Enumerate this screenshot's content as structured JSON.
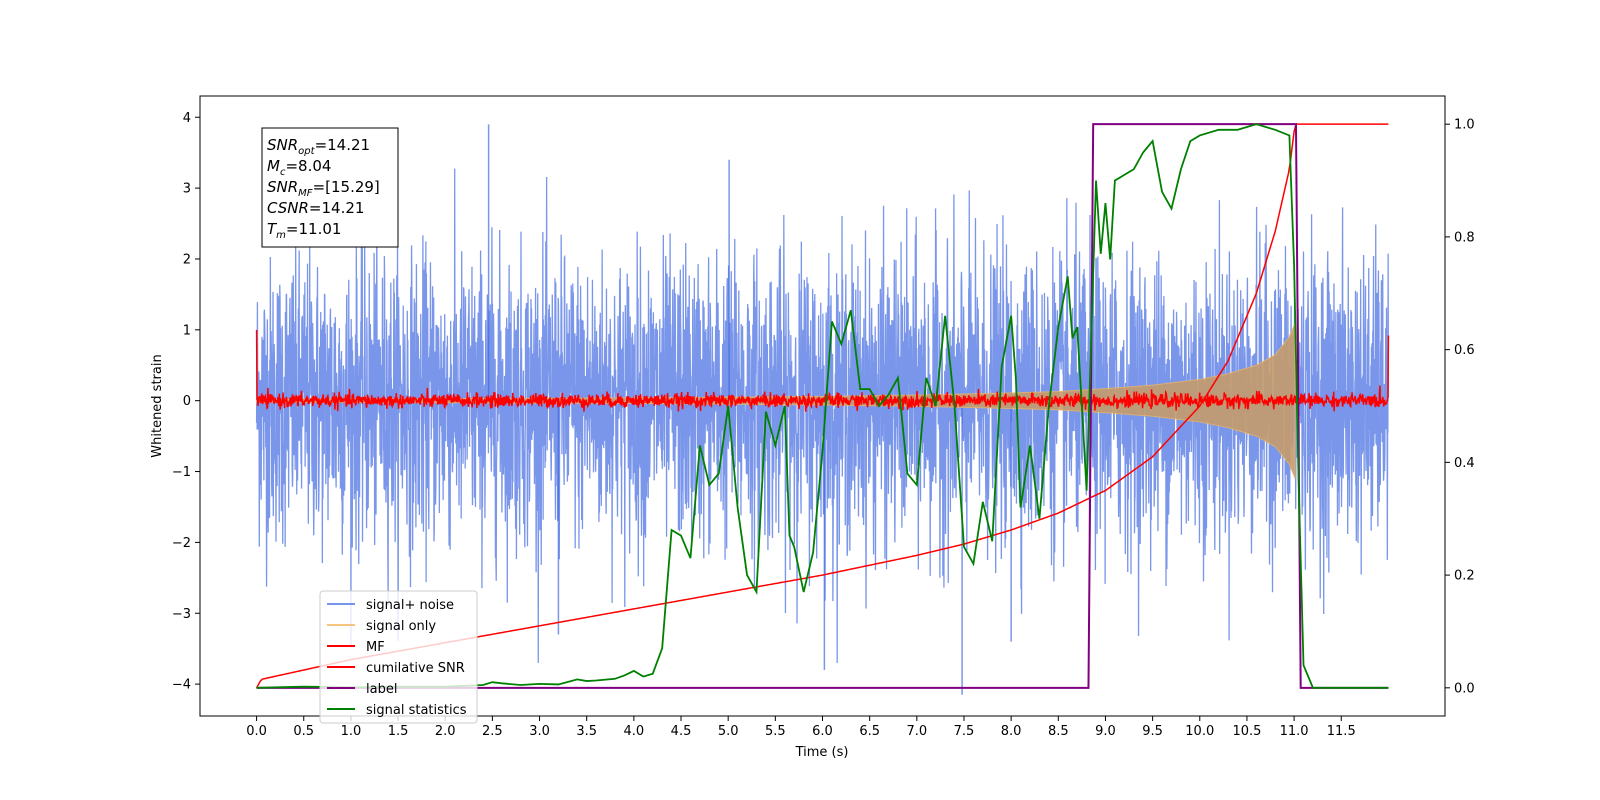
{
  "chart_data": {
    "type": "line",
    "title": "",
    "xlabel": "Time (s)",
    "ylabel": "Whitened strain",
    "ylabel_right": "",
    "xlim": [
      -0.6,
      12.6
    ],
    "ylim": [
      -4.45,
      4.3
    ],
    "ylim_right": [
      -0.05,
      1.05
    ],
    "xticks": [
      "0.0",
      "0.5",
      "1.0",
      "1.5",
      "2.0",
      "2.5",
      "3.0",
      "3.5",
      "4.0",
      "4.5",
      "5.0",
      "5.5",
      "6.0",
      "6.5",
      "7.0",
      "7.5",
      "8.0",
      "8.5",
      "9.0",
      "9.5",
      "10.0",
      "10.5",
      "11.0",
      "11.5"
    ],
    "yticks_left": [
      "−4",
      "−3",
      "−2",
      "−1",
      "0",
      "1",
      "2",
      "3",
      "4"
    ],
    "yticks_right": [
      "0.0",
      "0.2",
      "0.4",
      "0.6",
      "0.8",
      "1.0"
    ],
    "grid": false,
    "legend_position": "lower-left",
    "annotation_box": {
      "position": "top-left",
      "lines": [
        {
          "label": "SNR",
          "sub": "opt",
          "value": "=14.21"
        },
        {
          "label": "M",
          "sub": "c",
          "value": "=8.04"
        },
        {
          "label": "SNR",
          "sub": "MF",
          "value": "=[15.29]"
        },
        {
          "label": "CSNR",
          "sub": "",
          "value": "=14.21"
        },
        {
          "label": "T",
          "sub": "m",
          "value": "=11.01"
        }
      ]
    },
    "series": [
      {
        "name": "signal+ noise",
        "axis": "left",
        "color": "#4169e1",
        "rendering": "dense gaussian noise band",
        "x_range": [
          0.0,
          12.0
        ],
        "noise_std": 1.0,
        "spike_x": [
          2.46,
          3.2,
          5.01,
          6.02,
          7.48,
          8.0
        ],
        "spike_y": [
          3.9,
          -3.3,
          3.4,
          -3.8,
          -4.15,
          -3.4
        ]
      },
      {
        "name": "signal only",
        "axis": "left",
        "color": "#f4b860",
        "rendering": "chirp envelope",
        "x": [
          0.0,
          2.0,
          4.0,
          6.0,
          7.0,
          8.0,
          8.5,
          9.0,
          9.5,
          10.0,
          10.3,
          10.6,
          10.8,
          10.95,
          11.01
        ],
        "envelope": [
          0.02,
          0.03,
          0.04,
          0.06,
          0.08,
          0.11,
          0.13,
          0.17,
          0.22,
          0.3,
          0.38,
          0.5,
          0.65,
          0.9,
          1.1
        ]
      },
      {
        "name": "MF",
        "axis": "left",
        "color": "#ff0000",
        "rendering": "noisy line around zero",
        "x_range": [
          0.0,
          12.0
        ],
        "noise_std": 0.05,
        "edges": {
          "x": [
            0.0,
            12.0
          ],
          "y": [
            1.0,
            0.92
          ]
        }
      },
      {
        "name": "cumilative SNR",
        "axis": "right",
        "color": "#ff0000",
        "x": [
          0.0,
          0.05,
          1.0,
          2.0,
          3.0,
          4.0,
          5.0,
          6.0,
          7.0,
          7.5,
          8.0,
          8.5,
          9.0,
          9.5,
          10.0,
          10.3,
          10.6,
          10.8,
          10.95,
          11.01,
          11.02,
          12.0
        ],
        "y": [
          0.0,
          0.015,
          0.05,
          0.08,
          0.11,
          0.14,
          0.17,
          0.2,
          0.235,
          0.255,
          0.28,
          0.31,
          0.35,
          0.41,
          0.5,
          0.58,
          0.7,
          0.81,
          0.92,
          1.0,
          1.0,
          1.0
        ]
      },
      {
        "name": "label",
        "axis": "right",
        "color": "#800080",
        "x": [
          0.0,
          8.82,
          8.87,
          11.02,
          11.07,
          12.0
        ],
        "y": [
          0.0,
          0.0,
          1.0,
          1.0,
          0.0,
          0.0
        ]
      },
      {
        "name": "signal statistics",
        "axis": "right",
        "color": "#008000",
        "x": [
          0.0,
          0.5,
          1.0,
          1.5,
          2.0,
          2.4,
          2.5,
          2.6,
          2.8,
          3.0,
          3.2,
          3.4,
          3.5,
          3.6,
          3.8,
          3.9,
          4.0,
          4.1,
          4.2,
          4.3,
          4.4,
          4.5,
          4.6,
          4.7,
          4.8,
          4.9,
          5.0,
          5.1,
          5.2,
          5.3,
          5.4,
          5.5,
          5.6,
          5.65,
          5.7,
          5.8,
          5.9,
          6.0,
          6.1,
          6.2,
          6.3,
          6.4,
          6.5,
          6.6,
          6.7,
          6.8,
          6.9,
          7.0,
          7.1,
          7.2,
          7.3,
          7.4,
          7.5,
          7.6,
          7.7,
          7.8,
          7.9,
          8.0,
          8.05,
          8.1,
          8.2,
          8.3,
          8.4,
          8.5,
          8.6,
          8.65,
          8.7,
          8.75,
          8.8,
          8.9,
          8.95,
          9.0,
          9.05,
          9.1,
          9.2,
          9.3,
          9.4,
          9.5,
          9.6,
          9.7,
          9.8,
          9.9,
          10.0,
          10.2,
          10.4,
          10.6,
          10.8,
          10.95,
          11.0,
          11.05,
          11.1,
          11.2,
          12.0
        ],
        "y": [
          0.0,
          0.002,
          0.001,
          0.002,
          0.002,
          0.005,
          0.01,
          0.008,
          0.005,
          0.007,
          0.006,
          0.015,
          0.012,
          0.013,
          0.016,
          0.022,
          0.03,
          0.02,
          0.025,
          0.07,
          0.28,
          0.27,
          0.23,
          0.43,
          0.36,
          0.38,
          0.5,
          0.32,
          0.2,
          0.17,
          0.49,
          0.43,
          0.5,
          0.27,
          0.25,
          0.17,
          0.24,
          0.42,
          0.65,
          0.61,
          0.67,
          0.53,
          0.53,
          0.5,
          0.52,
          0.55,
          0.38,
          0.36,
          0.55,
          0.5,
          0.66,
          0.5,
          0.25,
          0.22,
          0.33,
          0.26,
          0.57,
          0.66,
          0.55,
          0.32,
          0.43,
          0.3,
          0.5,
          0.64,
          0.73,
          0.62,
          0.64,
          0.5,
          0.35,
          0.9,
          0.77,
          0.86,
          0.76,
          0.9,
          0.91,
          0.92,
          0.95,
          0.97,
          0.88,
          0.85,
          0.92,
          0.97,
          0.98,
          0.99,
          0.99,
          1.0,
          0.99,
          0.98,
          0.75,
          0.35,
          0.04,
          0.0,
          0.0
        ]
      }
    ]
  }
}
